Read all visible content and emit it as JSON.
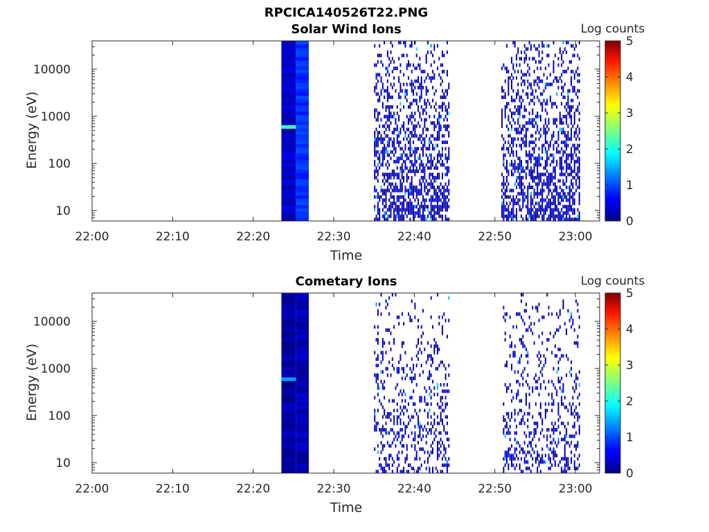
{
  "figure_title": "RPCICA140526T22.PNG",
  "chart_data": [
    {
      "type": "heatmap",
      "title": "Solar Wind Ions",
      "xlabel": "Time",
      "ylabel": "Energy (eV)",
      "x_tick_labels": [
        "22:00",
        "22:10",
        "22:20",
        "22:30",
        "22:40",
        "22:50",
        "23:00"
      ],
      "x_tick_minutes": [
        0,
        10,
        20,
        30,
        40,
        50,
        60
      ],
      "xlim_minutes": [
        0,
        63
      ],
      "y_scale": "log",
      "y_tick_labels": [
        "10",
        "100",
        "1000",
        "10000"
      ],
      "y_tick_values": [
        10,
        100,
        1000,
        10000
      ],
      "ylim": [
        6,
        40000
      ],
      "colorbar": {
        "label": "Log counts",
        "range": [
          0,
          5
        ],
        "tick_labels": [
          "0",
          "1",
          "2",
          "3",
          "4",
          "5"
        ],
        "colormap": "jet"
      },
      "dense_blocks": [
        {
          "start_min": 23.5,
          "end_min": 25.3,
          "level": 0.35
        },
        {
          "start_min": 25.3,
          "end_min": 26.9,
          "level": 0.85
        }
      ],
      "peak": {
        "start_min": 23.5,
        "end_min": 25.3,
        "energy": 600,
        "level": 2.2
      },
      "sparse_intervals": [
        [
          35.0,
          44.4
        ],
        [
          50.8,
          60.5
        ]
      ],
      "sparse_density": 0.55
    },
    {
      "type": "heatmap",
      "title": "Cometary Ions",
      "xlabel": "Time",
      "ylabel": "Energy (eV)",
      "x_tick_labels": [
        "22:00",
        "22:10",
        "22:20",
        "22:30",
        "22:40",
        "22:50",
        "23:00"
      ],
      "x_tick_minutes": [
        0,
        10,
        20,
        30,
        40,
        50,
        60
      ],
      "xlim_minutes": [
        0,
        63
      ],
      "y_scale": "log",
      "y_tick_labels": [
        "10",
        "100",
        "1000",
        "10000"
      ],
      "y_tick_values": [
        10,
        100,
        1000,
        10000
      ],
      "ylim": [
        6,
        40000
      ],
      "colorbar": {
        "label": "Log counts",
        "range": [
          0,
          5
        ],
        "tick_labels": [
          "0",
          "1",
          "2",
          "3",
          "4",
          "5"
        ],
        "colormap": "jet"
      },
      "dense_blocks": [
        {
          "start_min": 23.5,
          "end_min": 25.3,
          "level": 0.15
        },
        {
          "start_min": 25.3,
          "end_min": 26.9,
          "level": 0.25
        }
      ],
      "peak": {
        "start_min": 23.5,
        "end_min": 25.3,
        "energy": 600,
        "level": 1.4
      },
      "sparse_intervals": [
        [
          35.0,
          44.4
        ],
        [
          51.0,
          60.5
        ]
      ],
      "sparse_density": 0.28
    }
  ]
}
